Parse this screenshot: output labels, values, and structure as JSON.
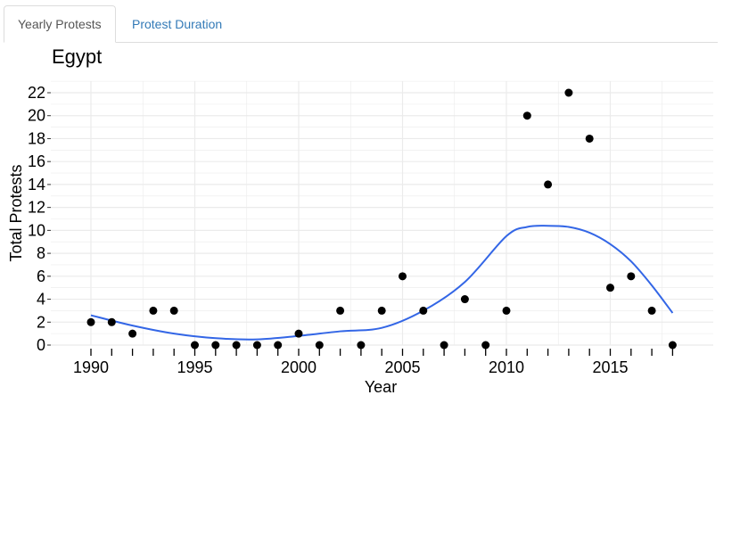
{
  "tabs": [
    {
      "label": "Yearly Protests",
      "active": true
    },
    {
      "label": "Protest Duration",
      "active": false
    }
  ],
  "colors": {
    "points": "#000000",
    "trend": "#3366e6",
    "grid": "#ebebeb",
    "tab_link": "#337ab7"
  },
  "chart_data": {
    "type": "scatter",
    "title": "Egypt",
    "xlabel": "Year",
    "ylabel": "Total Protests",
    "xlim": [
      1989,
      2020
    ],
    "ylim": [
      0,
      23
    ],
    "x_ticks": [
      1990,
      1995,
      2000,
      2005,
      2010,
      2015
    ],
    "y_ticks": [
      0,
      2,
      4,
      6,
      8,
      10,
      12,
      14,
      16,
      18,
      20,
      22
    ],
    "grid": true,
    "series": [
      {
        "type": "scatter",
        "x": [
          1990,
          1991,
          1992,
          1993,
          1994,
          1995,
          1996,
          1997,
          1998,
          1999,
          2000,
          2001,
          2002,
          2003,
          2004,
          2005,
          2006,
          2007,
          2008,
          2009,
          2010,
          2011,
          2012,
          2013,
          2014,
          2015,
          2016,
          2017,
          2018
        ],
        "y": [
          2,
          2,
          1,
          3,
          3,
          0,
          0,
          0,
          0,
          0,
          1,
          0,
          3,
          0,
          3,
          6,
          3,
          0,
          4,
          0,
          3,
          20,
          14,
          22,
          18,
          5,
          6,
          3,
          0
        ]
      },
      {
        "type": "line",
        "smooth": true,
        "x": [
          1990,
          1992,
          1994,
          1996,
          1998,
          2000,
          2002,
          2004,
          2006,
          2008,
          2010,
          2011,
          2012,
          2013,
          2014,
          2015,
          2016,
          2017,
          2018
        ],
        "y": [
          2.6,
          1.7,
          1.0,
          0.6,
          0.5,
          0.8,
          1.2,
          1.5,
          3.0,
          5.5,
          9.5,
          10.3,
          10.4,
          10.3,
          9.8,
          8.8,
          7.3,
          5.2,
          2.8
        ]
      }
    ]
  }
}
